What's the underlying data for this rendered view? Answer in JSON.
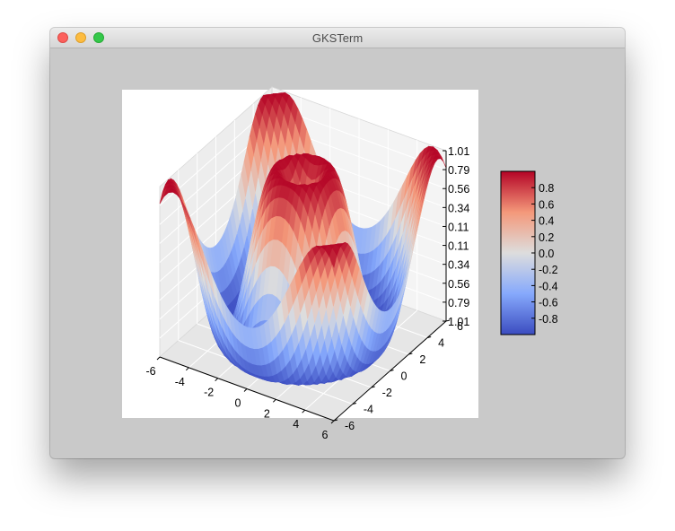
{
  "window": {
    "title": "GKSTerm",
    "traffic_lights": [
      "close",
      "minimize",
      "zoom"
    ]
  },
  "colors": {
    "window_background": "#c9c9c9",
    "plot_background": "#ffffff",
    "colormap": "coolwarm",
    "colormap_low": "#3b4cc0",
    "colormap_mid": "#dddddd",
    "colormap_high": "#b40426"
  },
  "chart_data": {
    "type": "surface",
    "function": "z = sin(sqrt(x^2 + y^2))",
    "x_range": [
      -6,
      6
    ],
    "y_range": [
      -6,
      6
    ],
    "z_range": [
      -1.01,
      1.01
    ],
    "x_ticks": [
      "-6",
      "-4",
      "-2",
      "0",
      "2",
      "4",
      "6"
    ],
    "y_ticks": [
      "-6",
      "-4",
      "-2",
      "0",
      "2",
      "4",
      "6"
    ],
    "z_ticks": [
      "1.01",
      "0.79",
      "0.56",
      "0.34",
      "0.11",
      "0.11",
      "0.34",
      "0.56",
      "0.79",
      "1.01"
    ],
    "colorbar": {
      "range": [
        -1,
        1
      ],
      "ticks": [
        "0.8",
        "0.6",
        "0.4",
        "0.2",
        "0.0",
        "-0.2",
        "-0.4",
        "-0.6",
        "-0.8"
      ]
    },
    "grid": true
  }
}
